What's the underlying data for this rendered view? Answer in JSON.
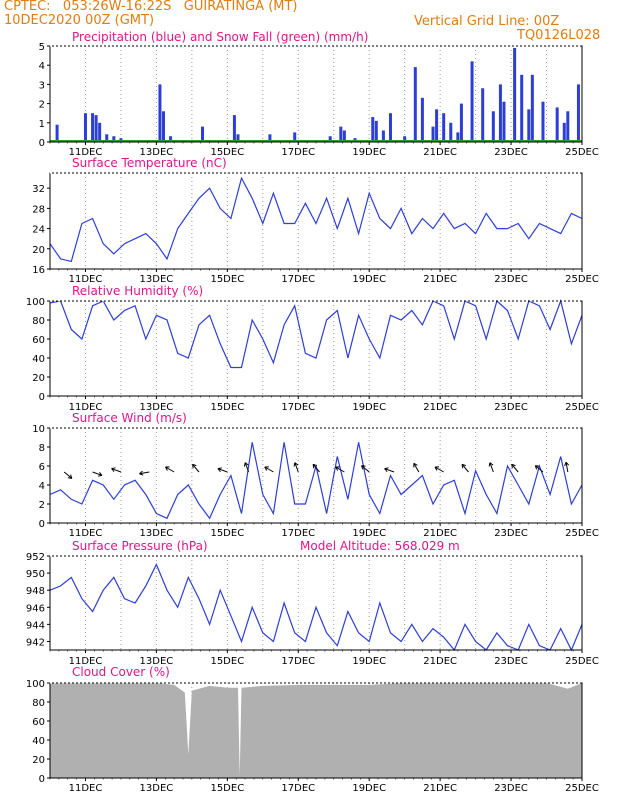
{
  "header": {
    "left_line1": "CPTEC:   053:26W-16:22S   GUIRATINGA (MT)",
    "left_line2": "10DEC2020 00Z (GMT)",
    "right_line1": "Vertical Grid Line: 00Z",
    "right_line2": "TQ0126L028"
  },
  "colors": {
    "header": "#e07d10",
    "title": "#e0158a",
    "line": "#2c3ed6",
    "snow": "#2aa02a",
    "cloud": "#b0b0b0"
  },
  "x_axis": {
    "tick_labels": [
      "11DEC",
      "13DEC",
      "15DEC",
      "17DEC",
      "19DEC",
      "21DEC",
      "23DEC",
      "25DEC"
    ],
    "start": "10DEC2020 00Z",
    "end": "25DEC2020 00Z",
    "vertical_grid": "00Z daily"
  },
  "chart_data": [
    {
      "type": "bar",
      "title": "Precipitation (blue) and Snow Fall (green) (mm/h)",
      "ylim": [
        0,
        5
      ],
      "yticks": [
        0,
        1,
        2,
        3,
        4,
        5
      ],
      "series": [
        {
          "name": "Precipitation",
          "color": "blue",
          "x_days": [
            0.2,
            1.0,
            1.2,
            1.3,
            1.4,
            1.6,
            1.8,
            2.0,
            3.1,
            3.2,
            3.4,
            4.3,
            5.2,
            5.3,
            6.2,
            6.9,
            7.9,
            8.2,
            8.3,
            8.6,
            9.1,
            9.2,
            9.4,
            9.6,
            10.0,
            10.3,
            10.5,
            10.8,
            10.9,
            11.1,
            11.3,
            11.5,
            11.6,
            11.9,
            12.2,
            12.5,
            12.7,
            12.8,
            13.1,
            13.3,
            13.5,
            13.6,
            13.9,
            14.3,
            14.5,
            14.6,
            14.9
          ],
          "values": [
            0.9,
            1.5,
            1.5,
            1.4,
            1.0,
            0.4,
            0.3,
            0.2,
            3.0,
            1.6,
            0.3,
            0.8,
            1.4,
            0.4,
            0.4,
            0.5,
            0.3,
            0.8,
            0.6,
            0.2,
            1.3,
            1.1,
            0.6,
            1.5,
            0.3,
            3.9,
            2.3,
            0.8,
            1.7,
            1.5,
            1.0,
            0.5,
            2.0,
            4.2,
            2.8,
            1.6,
            3.0,
            2.1,
            4.9,
            3.5,
            1.7,
            3.5,
            2.1,
            1.8,
            1.0,
            1.6,
            3.0
          ]
        },
        {
          "name": "Snow Fall",
          "color": "green",
          "x_days": [
            0,
            15
          ],
          "values": [
            0,
            0
          ]
        }
      ]
    },
    {
      "type": "line",
      "title": "Surface Temperature (nC)",
      "ylim": [
        16,
        35
      ],
      "yticks": [
        16,
        20,
        24,
        28,
        32
      ],
      "x_days": [
        0.0,
        0.3,
        0.6,
        0.9,
        1.2,
        1.5,
        1.8,
        2.1,
        2.4,
        2.7,
        3.0,
        3.3,
        3.6,
        3.9,
        4.2,
        4.5,
        4.8,
        5.1,
        5.4,
        5.7,
        6.0,
        6.3,
        6.6,
        6.9,
        7.2,
        7.5,
        7.8,
        8.1,
        8.4,
        8.7,
        9.0,
        9.3,
        9.6,
        9.9,
        10.2,
        10.5,
        10.8,
        11.1,
        11.4,
        11.7,
        12.0,
        12.3,
        12.6,
        12.9,
        13.2,
        13.5,
        13.8,
        14.1,
        14.4,
        14.7,
        15.0
      ],
      "values": [
        21,
        18,
        17.5,
        25,
        26,
        21,
        19,
        21,
        22,
        23,
        21,
        18,
        24,
        27,
        30,
        32,
        28,
        26,
        34,
        30,
        25,
        31,
        25,
        25,
        29,
        25,
        30,
        24,
        30,
        23,
        31,
        26,
        24,
        28,
        23,
        26,
        24,
        27,
        24,
        25,
        23,
        27,
        24,
        24,
        25,
        22,
        25,
        24,
        23,
        27,
        26
      ]
    },
    {
      "type": "line",
      "title": "Relative Humidity (%)",
      "ylim": [
        0,
        100
      ],
      "yticks": [
        0,
        20,
        40,
        60,
        80,
        100
      ],
      "x_days": [
        0.0,
        0.3,
        0.6,
        0.9,
        1.2,
        1.5,
        1.8,
        2.1,
        2.4,
        2.7,
        3.0,
        3.3,
        3.6,
        3.9,
        4.2,
        4.5,
        4.8,
        5.1,
        5.4,
        5.7,
        6.0,
        6.3,
        6.6,
        6.9,
        7.2,
        7.5,
        7.8,
        8.1,
        8.4,
        8.7,
        9.0,
        9.3,
        9.6,
        9.9,
        10.2,
        10.5,
        10.8,
        11.1,
        11.4,
        11.7,
        12.0,
        12.3,
        12.6,
        12.9,
        13.2,
        13.5,
        13.8,
        14.1,
        14.4,
        14.7,
        15.0
      ],
      "values": [
        98,
        100,
        70,
        60,
        95,
        100,
        80,
        90,
        95,
        60,
        85,
        80,
        45,
        40,
        75,
        85,
        55,
        30,
        30,
        80,
        60,
        35,
        75,
        95,
        45,
        40,
        80,
        90,
        40,
        85,
        60,
        40,
        85,
        80,
        90,
        75,
        100,
        95,
        60,
        100,
        95,
        60,
        100,
        90,
        60,
        100,
        95,
        70,
        100,
        55,
        85
      ]
    },
    {
      "type": "line",
      "title": "Surface Wind (m/s)",
      "ylim": [
        0,
        10
      ],
      "yticks": [
        0,
        2,
        4,
        6,
        8,
        10
      ],
      "x_days": [
        0.0,
        0.3,
        0.6,
        0.9,
        1.2,
        1.5,
        1.8,
        2.1,
        2.4,
        2.7,
        3.0,
        3.3,
        3.6,
        3.9,
        4.2,
        4.5,
        4.8,
        5.1,
        5.4,
        5.7,
        6.0,
        6.3,
        6.6,
        6.9,
        7.2,
        7.5,
        7.8,
        8.1,
        8.4,
        8.7,
        9.0,
        9.3,
        9.6,
        9.9,
        10.2,
        10.5,
        10.8,
        11.1,
        11.4,
        11.7,
        12.0,
        12.3,
        12.6,
        12.9,
        13.2,
        13.5,
        13.8,
        14.1,
        14.4,
        14.7,
        15.0
      ],
      "values": [
        3,
        3.5,
        2.5,
        2,
        4.5,
        4,
        2.5,
        4,
        4.5,
        3,
        1,
        0.5,
        3,
        4,
        2,
        0.5,
        3,
        5,
        1,
        8.5,
        3,
        1,
        8.5,
        2,
        2,
        6,
        1,
        7,
        2.5,
        8.5,
        3,
        1,
        5,
        3,
        4,
        5,
        2,
        4,
        4.5,
        1,
        5.5,
        3,
        1,
        6,
        4,
        2,
        6,
        3,
        7,
        2,
        4
      ]
    },
    {
      "type": "line",
      "title": "Surface Pressure (hPa)",
      "annotation": "Model Altitude: 568.029 m",
      "ylim": [
        941,
        952
      ],
      "yticks": [
        942,
        944,
        946,
        948,
        950,
        952
      ],
      "x_days": [
        0.0,
        0.3,
        0.6,
        0.9,
        1.2,
        1.5,
        1.8,
        2.1,
        2.4,
        2.7,
        3.0,
        3.3,
        3.6,
        3.9,
        4.2,
        4.5,
        4.8,
        5.1,
        5.4,
        5.7,
        6.0,
        6.3,
        6.6,
        6.9,
        7.2,
        7.5,
        7.8,
        8.1,
        8.4,
        8.7,
        9.0,
        9.3,
        9.6,
        9.9,
        10.2,
        10.5,
        10.8,
        11.1,
        11.4,
        11.7,
        12.0,
        12.3,
        12.6,
        12.9,
        13.2,
        13.5,
        13.8,
        14.1,
        14.4,
        14.7,
        15.0
      ],
      "values": [
        948,
        948.5,
        949.5,
        947,
        945.5,
        948,
        949.5,
        947,
        946.5,
        948.5,
        951,
        948,
        946,
        949.5,
        947,
        944,
        948,
        945,
        942,
        946,
        943,
        942,
        946.5,
        943,
        942,
        946,
        943,
        941.5,
        945.5,
        943,
        942,
        946.5,
        943,
        942,
        944,
        942,
        943.5,
        942.5,
        941,
        944,
        942,
        941,
        943,
        941.5,
        941,
        944,
        941.5,
        941,
        943.5,
        941,
        944
      ]
    },
    {
      "type": "area",
      "title": "Cloud Cover (%)",
      "ylim": [
        0,
        100
      ],
      "yticks": [
        0,
        20,
        40,
        60,
        80,
        100
      ],
      "x_days": [
        0.0,
        0.5,
        1.0,
        1.5,
        2.0,
        2.5,
        3.0,
        3.5,
        3.8,
        3.9,
        4.0,
        4.5,
        5.0,
        5.3,
        5.35,
        5.4,
        6.0,
        7.0,
        8.0,
        9.0,
        10.0,
        11.0,
        12.0,
        13.0,
        14.0,
        14.6,
        15.0
      ],
      "values": [
        100,
        100,
        100,
        100,
        100,
        100,
        100,
        98,
        90,
        25,
        92,
        97,
        95,
        95,
        2,
        95,
        97,
        98,
        98,
        98,
        100,
        100,
        100,
        100,
        100,
        94,
        100
      ]
    }
  ]
}
